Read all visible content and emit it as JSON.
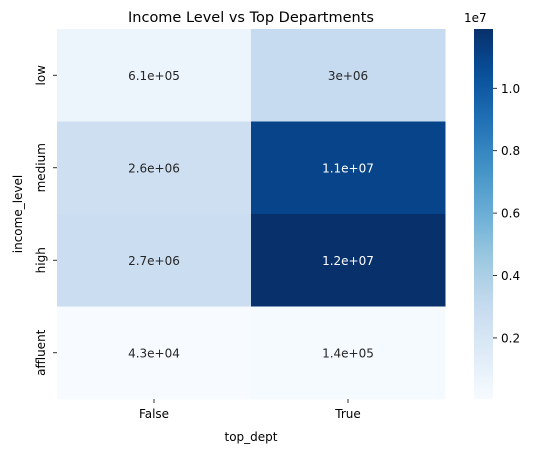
{
  "chart_data": {
    "type": "heatmap",
    "title": "Income Level vs Top Departments",
    "xlabel": "top_dept",
    "ylabel": "income_level",
    "x_categories": [
      "False",
      "True"
    ],
    "y_categories": [
      "low",
      "medium",
      "high",
      "affluent"
    ],
    "values": [
      [
        610000,
        3000000
      ],
      [
        2600000,
        11000000
      ],
      [
        2700000,
        12000000
      ],
      [
        43000,
        140000
      ]
    ],
    "annotations": [
      [
        "6.1e+05",
        "3e+06"
      ],
      [
        "2.6e+06",
        "1.1e+07"
      ],
      [
        "2.7e+06",
        "1.2e+07"
      ],
      [
        "4.3e+04",
        "1.4e+05"
      ]
    ],
    "colormap": "Blues",
    "colorbar": {
      "range": [
        0,
        11900000
      ],
      "ticks": [
        2000000,
        4000000,
        6000000,
        8000000,
        10000000
      ],
      "tick_labels": [
        "0.2",
        "0.4",
        "0.6",
        "0.8",
        "1.0"
      ],
      "offset_label": "1e7"
    }
  }
}
